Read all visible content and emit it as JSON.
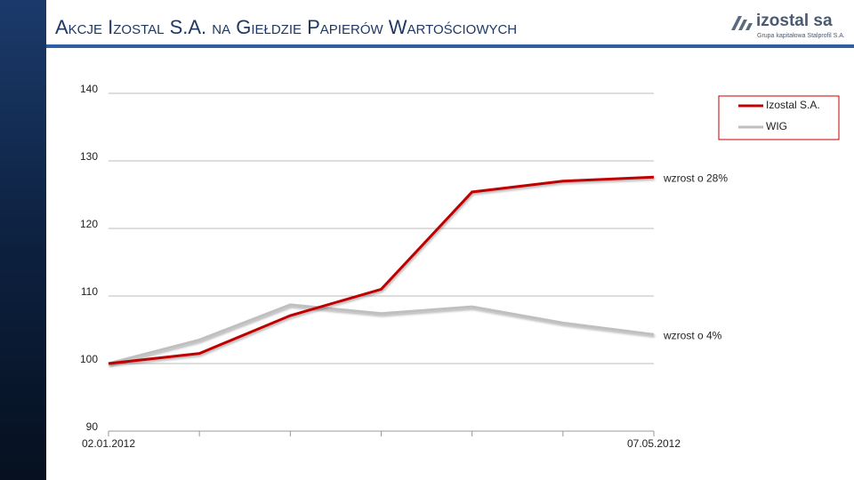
{
  "header": {
    "title": "Akcje Izostal S.A. na Giełdzie Papierów Wartościowych",
    "logo": "izostal sa",
    "logo_subtitle": "Grupa kapitałowa Stalprofil S.A."
  },
  "chart_data": {
    "type": "line",
    "categories": [
      "02.01.2012",
      null,
      null,
      null,
      null,
      null,
      "07.05.2012"
    ],
    "series": [
      {
        "name": "Izostal S.A.",
        "color": "#c00000",
        "values": [
          100,
          101.5,
          107.1,
          111,
          125.4,
          127,
          127.6
        ]
      },
      {
        "name": "WIG",
        "color": "#bfbfbf",
        "values": [
          100,
          103.5,
          108.7,
          107.4,
          108.4,
          106,
          104.3
        ]
      }
    ],
    "annotations": [
      "wzrost o 28%",
      "wzrost o 4%"
    ],
    "ylim": [
      90,
      140
    ],
    "yticks": [
      90,
      100,
      110,
      120,
      130,
      140
    ],
    "grid": true,
    "legend": "top-right"
  }
}
